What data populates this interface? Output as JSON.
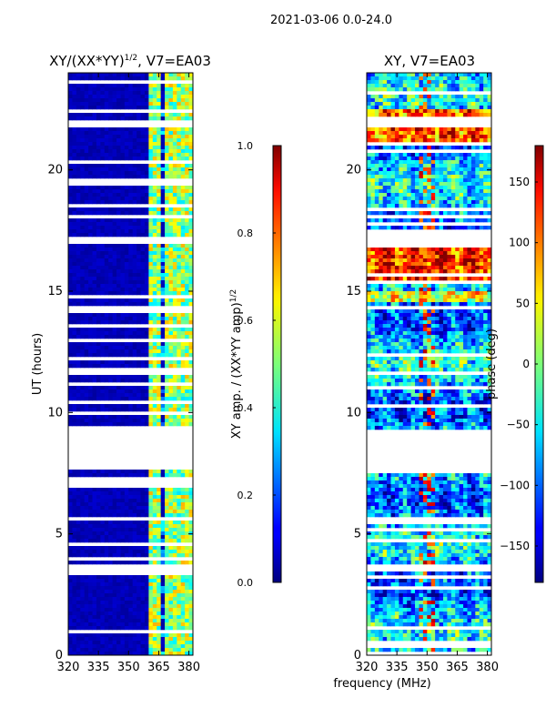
{
  "figure": {
    "suptitle": "2021-03-06 0.0-24.0",
    "xlabel_shared": "frequency (MHz)"
  },
  "chart_data": [
    {
      "type": "heatmap",
      "title_prefix": "XY/(XX*YY)",
      "title_sup": "1/2",
      "title_suffix": ", V7=EA03",
      "ylabel": "UT (hours)",
      "x": {
        "range": [
          320,
          382
        ],
        "ticks": [
          320,
          335,
          350,
          365,
          380
        ]
      },
      "y": {
        "range": [
          0,
          24
        ],
        "ticks": [
          0,
          5,
          10,
          15,
          20
        ]
      },
      "colorbar": {
        "label_prefix": "XY amp. / (XX*YY amp)",
        "label_sup": "1/2",
        "range": [
          0.0,
          1.0
        ],
        "ticks": [
          "0.0",
          "0.2",
          "0.4",
          "0.6",
          "0.8",
          "1.0"
        ],
        "tick_values": [
          0.0,
          0.2,
          0.4,
          0.6,
          0.8,
          1.0
        ]
      },
      "bright_channel_bands_mhz": [
        [
          360,
          362
        ],
        [
          363.5,
          365.5
        ],
        [
          368,
          371
        ],
        [
          373,
          375
        ],
        [
          377,
          379
        ],
        [
          380,
          381
        ]
      ],
      "flagged_hours": [
        [
          3.4,
          3.6
        ],
        [
          7.6,
          9.3
        ],
        [
          17.0,
          17.3
        ],
        [
          18.0,
          18.2
        ],
        [
          21.8,
          22.0
        ],
        [
          11.5,
          11.7
        ]
      ]
    },
    {
      "type": "heatmap",
      "title": "XY, V7=EA03",
      "x": {
        "range": [
          320,
          382
        ],
        "ticks": [
          320,
          335,
          350,
          365,
          380
        ]
      },
      "y": {
        "range": [
          0,
          24
        ],
        "ticks": [
          0,
          5,
          10,
          15,
          20
        ]
      },
      "colorbar": {
        "label": "phase (deg)",
        "range": [
          -180,
          180
        ],
        "ticks": [
          "150",
          "100",
          "50",
          "0",
          "−50",
          "−100",
          "−150"
        ],
        "tick_values": [
          150,
          100,
          50,
          0,
          -50,
          -100,
          -150
        ]
      },
      "flagged_hours": [
        [
          3.4,
          3.6
        ],
        [
          7.6,
          9.3
        ],
        [
          17.0,
          17.3
        ],
        [
          18.0,
          18.2
        ],
        [
          21.8,
          22.0
        ],
        [
          11.5,
          11.7
        ]
      ]
    }
  ]
}
